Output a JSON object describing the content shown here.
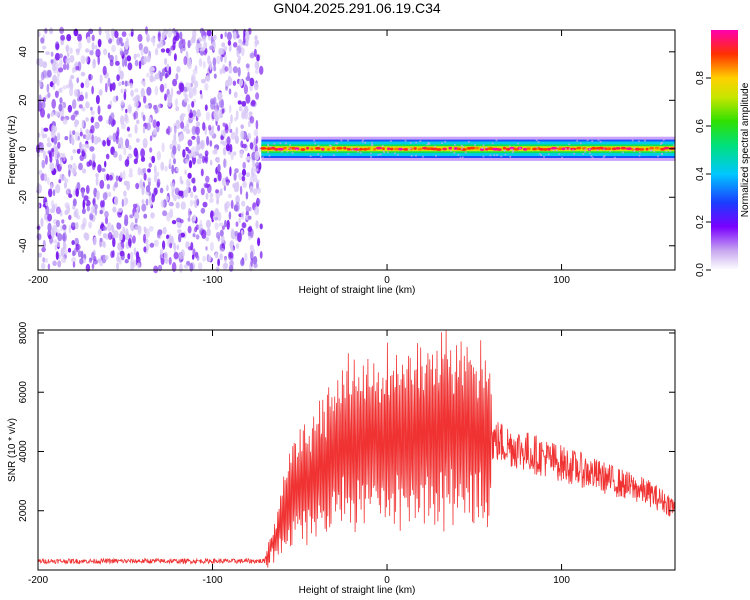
{
  "figure": {
    "title": "GN04.2025.291.06.19.C34"
  },
  "chart_data": [
    {
      "type": "heatmap",
      "title": "GN04.2025.291.06.19.C34",
      "xlabel": "Height of straight line (km)",
      "ylabel": "Frequency (Hz)",
      "xlim": [
        -200,
        165
      ],
      "ylim": [
        -50,
        49
      ],
      "xticks": [
        -200,
        -100,
        0,
        100
      ],
      "yticks": [
        -40,
        -20,
        0,
        20,
        40
      ],
      "colorbar": {
        "label": "Normalized spectral amplitude",
        "range": [
          0,
          1
        ],
        "ticks": [
          0.0,
          0.2,
          0.4,
          0.6,
          0.8
        ]
      },
      "regions": [
        {
          "kind": "noise",
          "x_range": [
            -200,
            -72
          ],
          "freq_range": [
            -50,
            49
          ],
          "amplitude_range": [
            0.05,
            0.3
          ]
        },
        {
          "kind": "signal",
          "x_range": [
            -72,
            165
          ],
          "center_freq": 0,
          "half_width_hz": 3,
          "peak_amplitude": 1.0
        }
      ],
      "grid": false
    },
    {
      "type": "line",
      "xlabel": "Height of straight line (km)",
      "ylabel": "SNR (10 * v/v)",
      "xlim": [
        -200,
        165
      ],
      "ylim": [
        0,
        8100
      ],
      "xticks": [
        -200,
        -100,
        0,
        100
      ],
      "yticks": [
        2000,
        4000,
        6000,
        8000
      ],
      "series": [
        {
          "color": "#f03232",
          "envelope": {
            "x": [
              -200,
              -70,
              -62,
              -55,
              -45,
              -35,
              -25,
              -15,
              -5,
              5,
              15,
              25,
              35,
              45,
              55,
              70,
              90,
              110,
              130,
              150,
              165
            ],
            "y": [
              300,
              300,
              1400,
              2600,
              3000,
              3600,
              4200,
              4300,
              4500,
              4500,
              4600,
              4700,
              4800,
              4700,
              4500,
              4200,
              3800,
              3400,
              3000,
              2600,
              2100
            ]
          }
        }
      ],
      "grid": false
    }
  ]
}
